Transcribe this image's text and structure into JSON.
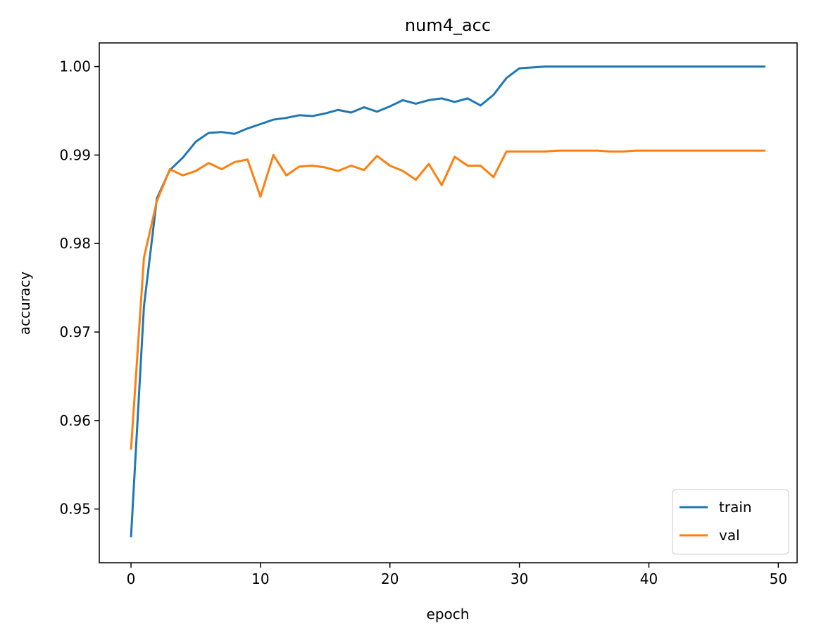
{
  "chart_data": {
    "type": "line",
    "title": "num4_acc",
    "xlabel": "epoch",
    "ylabel": "accuracy",
    "x": [
      0,
      1,
      2,
      3,
      4,
      5,
      6,
      7,
      8,
      9,
      10,
      11,
      12,
      13,
      14,
      15,
      16,
      17,
      18,
      19,
      20,
      21,
      22,
      23,
      24,
      25,
      26,
      27,
      28,
      29,
      30,
      31,
      32,
      33,
      34,
      35,
      36,
      37,
      38,
      39,
      40,
      41,
      42,
      43,
      44,
      45,
      46,
      47,
      48,
      49
    ],
    "series": [
      {
        "name": "train",
        "color": "#1f77b4",
        "values": [
          0.9468,
          0.9729,
          0.9851,
          0.9883,
          0.9897,
          0.9915,
          0.9925,
          0.9926,
          0.9924,
          0.993,
          0.9935,
          0.994,
          0.9942,
          0.9945,
          0.9944,
          0.9947,
          0.9951,
          0.9948,
          0.9954,
          0.9949,
          0.9955,
          0.9962,
          0.9958,
          0.9962,
          0.9964,
          0.996,
          0.9964,
          0.9956,
          0.9968,
          0.9987,
          0.9998,
          0.9999,
          1.0,
          1.0,
          1.0,
          1.0,
          1.0,
          1.0,
          1.0,
          1.0,
          1.0,
          1.0,
          1.0,
          1.0,
          1.0,
          1.0,
          1.0,
          1.0,
          1.0,
          1.0
        ]
      },
      {
        "name": "val",
        "color": "#ff7f0e",
        "values": [
          0.9567,
          0.9784,
          0.9848,
          0.9884,
          0.9877,
          0.9882,
          0.9891,
          0.9884,
          0.9892,
          0.9895,
          0.9853,
          0.99,
          0.9877,
          0.9887,
          0.9888,
          0.9886,
          0.9882,
          0.9888,
          0.9883,
          0.9899,
          0.9888,
          0.9882,
          0.9872,
          0.989,
          0.9866,
          0.9898,
          0.9888,
          0.9888,
          0.9875,
          0.9904,
          0.9904,
          0.9904,
          0.9904,
          0.9905,
          0.9905,
          0.9905,
          0.9905,
          0.9904,
          0.9904,
          0.9905,
          0.9905,
          0.9905,
          0.9905,
          0.9905,
          0.9905,
          0.9905,
          0.9905,
          0.9905,
          0.9905,
          0.9905
        ]
      }
    ],
    "xlim": [
      -2.45,
      51.45
    ],
    "xticks": [
      0,
      10,
      20,
      30,
      40,
      50
    ],
    "ylim": [
      0.94393,
      1.00267
    ],
    "yticks": [
      0.95,
      0.96,
      0.97,
      0.98,
      0.99,
      {
        "value": 1.0,
        "label": "1.00"
      }
    ],
    "legend": "lower right",
    "grid": false
  }
}
